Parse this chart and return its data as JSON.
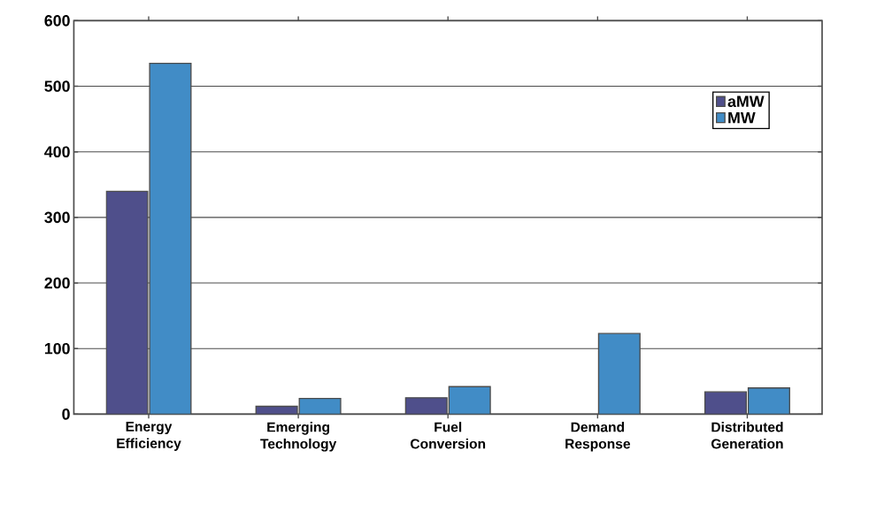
{
  "chart_data": {
    "type": "bar",
    "categories": [
      "Energy Efficiency",
      "Emerging Technology",
      "Fuel Conversion",
      "Demand Response",
      "Distributed Generation"
    ],
    "series": [
      {
        "name": "aMW",
        "color": "#4f4f8b",
        "values": [
          340,
          12,
          25,
          null,
          34
        ]
      },
      {
        "name": "MW",
        "color": "#418cc6",
        "values": [
          535,
          24,
          42,
          123,
          40
        ]
      }
    ],
    "ylim": [
      0,
      600
    ],
    "yticks": [
      0,
      100,
      200,
      300,
      400,
      500,
      600
    ],
    "grid": "y",
    "legend": "top right"
  }
}
